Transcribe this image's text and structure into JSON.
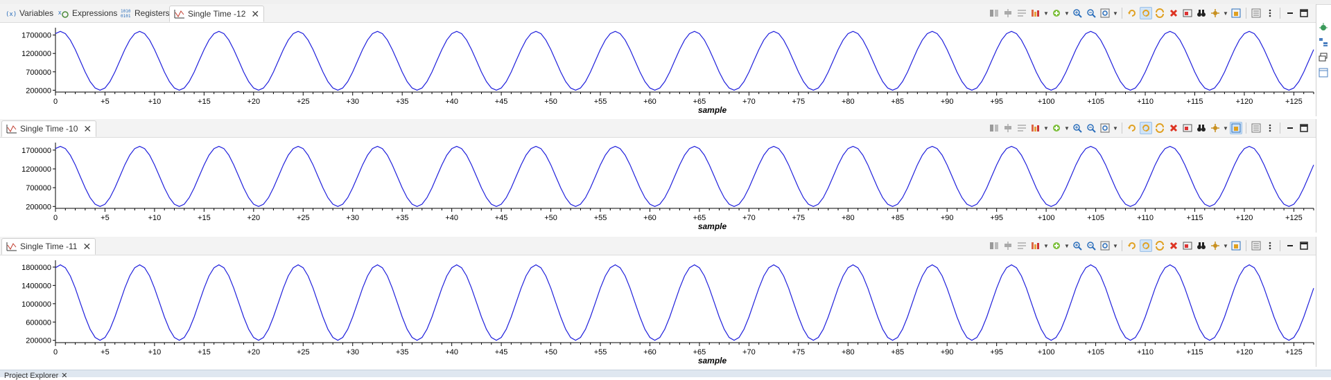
{
  "colors": {
    "series": "#1f1fdc",
    "axis": "#000000",
    "tab_bg": "#f3f3f3"
  },
  "top_panel": {
    "tabs": [
      {
        "icon": "variables-icon",
        "label": "Variables"
      },
      {
        "icon": "expressions-icon",
        "label": "Expressions"
      },
      {
        "icon": "registers-icon",
        "label": "Registers"
      },
      {
        "icon": "graph-icon",
        "label": "Single Time -12",
        "active": true,
        "close": "✕"
      }
    ]
  },
  "panels": [
    {
      "tab_label": "Single Time -12",
      "close": "✕"
    },
    {
      "tab_label": "Single Time -10",
      "close": "✕"
    },
    {
      "tab_label": "Single Time -11",
      "close": "✕"
    }
  ],
  "toolbar_icons": [
    "layout-icon",
    "align-icon",
    "axis-icon",
    "stats-icon",
    "add-icon",
    "zoom-in-icon",
    "zoom-out-icon",
    "zoom-fit-icon",
    "refresh-icon",
    "continuous-refresh-icon",
    "sync-icon",
    "remove-icon",
    "export-icon",
    "binoculars-icon",
    "settings-icon",
    "freeze-icon",
    "properties-icon",
    "view-menu-icon",
    "minimize-icon",
    "maximize-icon"
  ],
  "sidebar_icons": [
    "debug-icon",
    "outline-icon",
    "restore-icon",
    "panel-icon"
  ],
  "bottom_tab": {
    "label": "Project Explorer",
    "close": "✕"
  },
  "chart_data": [
    {
      "type": "line",
      "title": "",
      "xlabel": "sample",
      "ylabel": "",
      "xlim": [
        0,
        127
      ],
      "ylim": [
        150000,
        1900000
      ],
      "y_ticks": [
        200000,
        700000,
        1200000,
        1700000
      ],
      "y_tick_labels": [
        "200000",
        "700000",
        "1200000",
        "1700000"
      ],
      "x_tick_labels": [
        "0",
        "+5",
        "+10",
        "+15",
        "+20",
        "+25",
        "+30",
        "+35",
        "+40",
        "+45",
        "+50",
        "+55",
        "+60",
        "+65",
        "+70",
        "+75",
        "+80",
        "+85",
        "+90",
        "+95",
        "+100",
        "+105",
        "+110",
        "+115",
        "+120",
        "+125"
      ],
      "series": [
        {
          "period": 8,
          "min": 200000,
          "max": 1800000,
          "values_pattern": [
            1800000,
            1770000,
            1450000,
            1000000,
            600000,
            230000,
            200000,
            600000,
            1050000,
            1450000
          ]
        }
      ]
    },
    {
      "type": "line",
      "title": "",
      "xlabel": "sample",
      "ylabel": "",
      "xlim": [
        0,
        127
      ],
      "ylim": [
        150000,
        1900000
      ],
      "y_ticks": [
        200000,
        700000,
        1200000,
        1700000
      ],
      "y_tick_labels": [
        "200000",
        "700000",
        "1200000",
        "1700000"
      ],
      "x_tick_labels": [
        "0",
        "+5",
        "+10",
        "+15",
        "+20",
        "+25",
        "+30",
        "+35",
        "+40",
        "+45",
        "+50",
        "+55",
        "+60",
        "+65",
        "+70",
        "+75",
        "+80",
        "+85",
        "+90",
        "+95",
        "+100",
        "+105",
        "+110",
        "+115",
        "+120",
        "+125"
      ],
      "series": [
        {
          "period": 8,
          "min": 200000,
          "max": 1800000
        }
      ]
    },
    {
      "type": "line",
      "title": "",
      "xlabel": "sample",
      "ylabel": "",
      "xlim": [
        0,
        127
      ],
      "ylim": [
        150000,
        1950000
      ],
      "y_ticks": [
        200000,
        600000,
        1000000,
        1400000,
        1800000
      ],
      "y_tick_labels": [
        "200000",
        "600000",
        "1000000",
        "1400000",
        "1800000"
      ],
      "x_tick_labels": [
        "0",
        "+5",
        "+10",
        "+15",
        "+20",
        "+25",
        "+30",
        "+35",
        "+40",
        "+45",
        "+50",
        "+55",
        "+60",
        "+65",
        "+70",
        "+75",
        "+80",
        "+85",
        "+90",
        "+95",
        "+100",
        "+105",
        "+110",
        "+115",
        "+120",
        "+125"
      ],
      "series": [
        {
          "period": 8,
          "min": 200000,
          "max": 1850000
        }
      ]
    }
  ]
}
